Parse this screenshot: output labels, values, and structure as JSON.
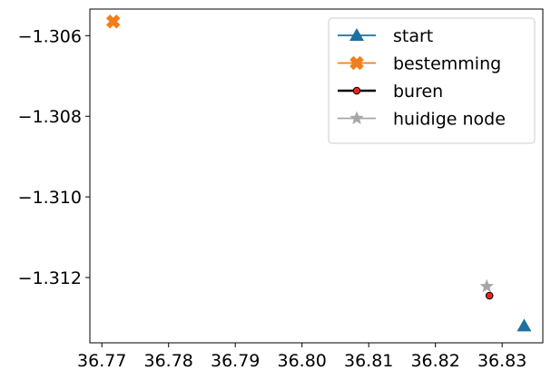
{
  "chart_data": {
    "type": "scatter",
    "title": "",
    "xlabel": "",
    "ylabel": "",
    "xlim": [
      36.7682,
      36.8361
    ],
    "ylim": [
      -1.31362,
      -1.30534
    ],
    "xticks": [
      36.77,
      36.78,
      36.79,
      36.8,
      36.81,
      36.82,
      36.83
    ],
    "xtick_labels": [
      "36.77",
      "36.78",
      "36.79",
      "36.80",
      "36.81",
      "36.82",
      "36.83"
    ],
    "yticks": [
      -1.306,
      -1.308,
      -1.31,
      -1.312
    ],
    "ytick_labels": [
      "−1.306",
      "−1.308",
      "−1.310",
      "−1.312"
    ],
    "grid": false,
    "legend_position": "top-right",
    "series": [
      {
        "name": "start",
        "marker": "triangle",
        "color": "#1f6f9f",
        "points": [
          [
            36.8333,
            -1.3132
          ]
        ]
      },
      {
        "name": "bestemming",
        "marker": "x-filled",
        "color": "#f27f1b",
        "points": [
          [
            36.7717,
            -1.30565
          ]
        ]
      },
      {
        "name": "buren",
        "marker": "circle",
        "color": "#e8241c",
        "edge": "#000000",
        "points": [
          [
            36.8281,
            -1.31245
          ]
        ]
      },
      {
        "name": "huidige node",
        "marker": "star",
        "color": "#a7a7a7",
        "points": [
          [
            36.8277,
            -1.31222
          ]
        ]
      }
    ]
  }
}
